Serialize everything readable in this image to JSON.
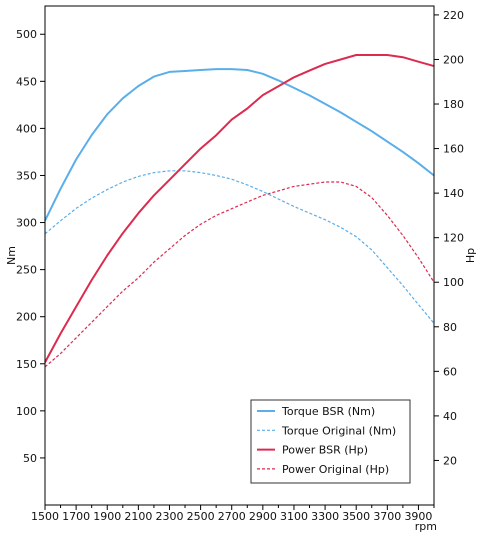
{
  "chart_data": {
    "type": "line",
    "xlabel": "rpm",
    "ylabel_left": "Nm",
    "ylabel_right": "Hp",
    "xlim": [
      1500,
      4000
    ],
    "ylim_left": [
      0,
      530
    ],
    "ylim_right": [
      0,
      224
    ],
    "x_ticks": [
      1500,
      1700,
      1900,
      2100,
      2300,
      2500,
      2700,
      2900,
      3100,
      3300,
      3500,
      3700,
      3900
    ],
    "y_ticks_left": [
      50,
      100,
      150,
      200,
      250,
      300,
      350,
      400,
      450,
      500
    ],
    "y_ticks_right": [
      20,
      40,
      60,
      80,
      100,
      120,
      140,
      160,
      180,
      200,
      220
    ],
    "grid": false,
    "legend_position": "bottom-right",
    "series": [
      {
        "name": "Torque BSR (Nm)",
        "axis": "left",
        "color": "#5aaeea",
        "style": "solid",
        "x": [
          1500,
          1600,
          1700,
          1800,
          1900,
          2000,
          2100,
          2200,
          2300,
          2400,
          2500,
          2600,
          2700,
          2800,
          2900,
          3000,
          3100,
          3200,
          3300,
          3400,
          3500,
          3600,
          3700,
          3800,
          3900,
          4000
        ],
        "y": [
          302,
          336,
          367,
          393,
          415,
          432,
          445,
          455,
          460,
          461,
          462,
          463,
          463,
          462,
          458,
          451,
          443,
          435,
          426,
          417,
          407,
          397,
          386,
          375,
          363,
          350
        ]
      },
      {
        "name": "Torque Original (Nm)",
        "axis": "left",
        "color": "#5aaeea",
        "style": "dashed",
        "x": [
          1500,
          1600,
          1700,
          1800,
          1900,
          2000,
          2100,
          2200,
          2300,
          2400,
          2500,
          2600,
          2700,
          2800,
          2900,
          3000,
          3100,
          3200,
          3300,
          3400,
          3500,
          3600,
          3700,
          3800,
          3900,
          4000
        ],
        "y": [
          288,
          302,
          315,
          326,
          335,
          343,
          349,
          353,
          355,
          355,
          353,
          350,
          346,
          340,
          333,
          325,
          317,
          310,
          303,
          295,
          285,
          271,
          252,
          233,
          213,
          193
        ]
      },
      {
        "name": "Power BSR (Hp)",
        "axis": "right",
        "color": "#dd2a4f",
        "style": "solid",
        "x": [
          1500,
          1600,
          1700,
          1800,
          1900,
          2000,
          2100,
          2200,
          2300,
          2400,
          2500,
          2600,
          2700,
          2800,
          2900,
          3000,
          3100,
          3200,
          3300,
          3400,
          3500,
          3600,
          3700,
          3800,
          3900,
          4000
        ],
        "y": [
          64,
          77,
          89,
          101,
          112,
          122,
          131,
          139,
          146,
          153,
          160,
          166,
          173,
          178,
          184,
          188,
          192,
          195,
          198,
          200,
          202,
          202,
          202,
          201,
          199,
          197
        ]
      },
      {
        "name": "Power Original (Hp)",
        "axis": "right",
        "color": "#dd2a4f",
        "style": "dashed",
        "x": [
          1500,
          1600,
          1700,
          1800,
          1900,
          2000,
          2100,
          2200,
          2300,
          2400,
          2500,
          2600,
          2700,
          2800,
          2900,
          3000,
          3100,
          3200,
          3300,
          3400,
          3500,
          3600,
          3700,
          3800,
          3900,
          4000
        ],
        "y": [
          62,
          68,
          75,
          82,
          89,
          96,
          102,
          109,
          115,
          121,
          126,
          130,
          133,
          136,
          139,
          141,
          143,
          144,
          145,
          145,
          143,
          138,
          130,
          121,
          111,
          100
        ]
      }
    ]
  }
}
